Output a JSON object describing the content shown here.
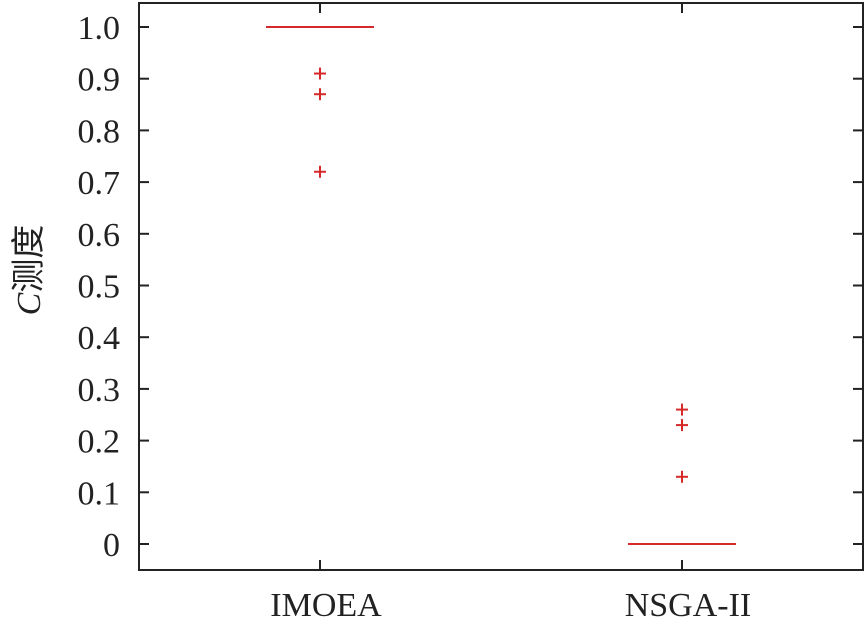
{
  "chart_data": {
    "type": "box",
    "ylabel": "C测度",
    "ylabel_italic_part": "C",
    "ylabel_rest": "测度",
    "xlabel": "",
    "ylim": [
      -0.05,
      1.05
    ],
    "yticks": [
      0,
      0.1,
      0.2,
      0.3,
      0.4,
      0.5,
      0.6,
      0.7,
      0.8,
      0.9,
      1.0
    ],
    "ytick_labels": [
      "0",
      "0.1",
      "0.2",
      "0.3",
      "0.4",
      "0.5",
      "0.6",
      "0.7",
      "0.8",
      "0.9",
      "1.0"
    ],
    "categories": [
      "IMOEA",
      "NSGA-II"
    ],
    "series": [
      {
        "category": "IMOEA",
        "median": 1.0,
        "outliers": [
          0.91,
          0.87,
          0.72
        ]
      },
      {
        "category": "NSGA-II",
        "median": 0.0,
        "outliers": [
          0.26,
          0.23,
          0.13
        ]
      }
    ],
    "color": "#d62a2a",
    "grid": false
  }
}
